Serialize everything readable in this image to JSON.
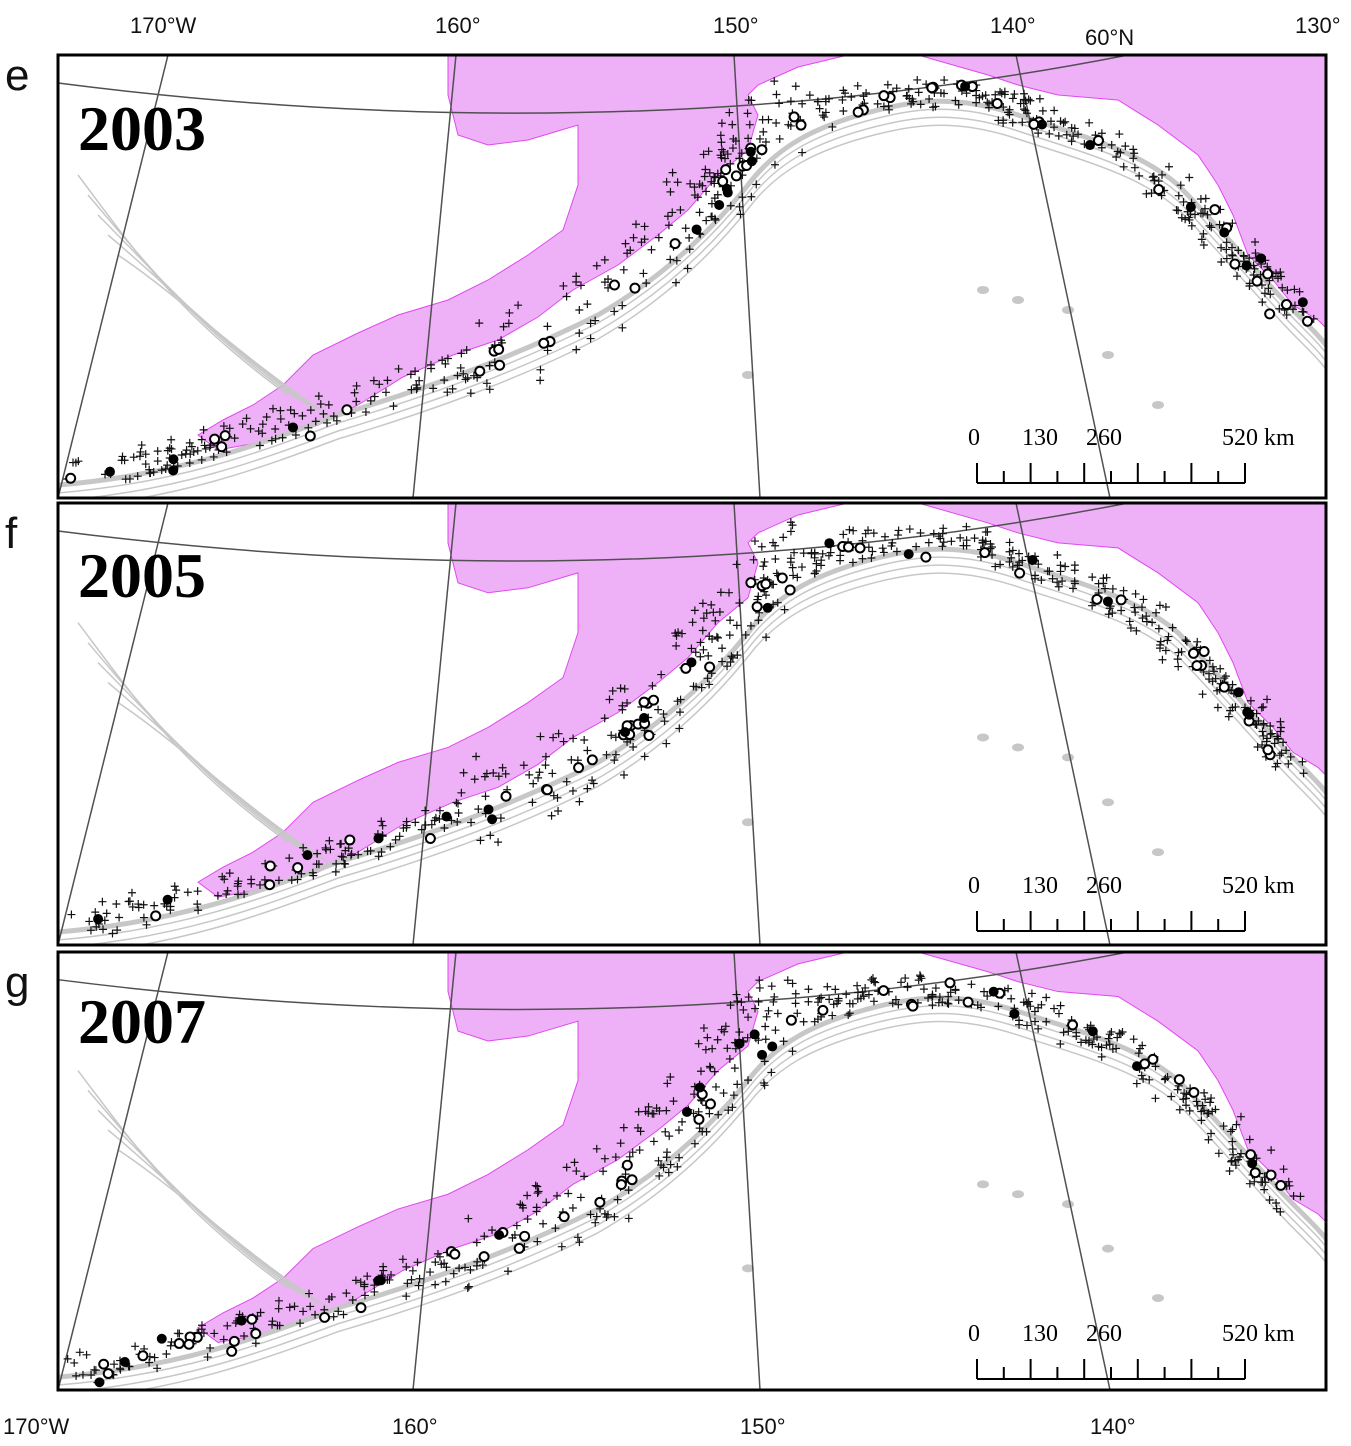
{
  "top_axis": {
    "lon_labels": [
      "170°W",
      "160°",
      "150°",
      "140°",
      "130°"
    ],
    "lat_label": "60°N"
  },
  "bottom_axis": {
    "lon_labels": [
      "170°W",
      "160°",
      "150°",
      "140°"
    ]
  },
  "panels": [
    {
      "letter": "e",
      "year": "2003"
    },
    {
      "letter": "f",
      "year": "2005"
    },
    {
      "letter": "g",
      "year": "2007"
    }
  ],
  "scale_bar": {
    "ticks": [
      "0",
      "130",
      "260",
      "520 km"
    ]
  },
  "colors": {
    "land": "#EEB1F8",
    "coast_highlight": "#E048EE",
    "bathymetry": "#C7C7C7",
    "graticule": "#505050",
    "frame": "#000000"
  },
  "symbols": {
    "cross": "plus-sign marker",
    "open_circle": "open circle marker",
    "filled_circle": "filled circle marker"
  }
}
